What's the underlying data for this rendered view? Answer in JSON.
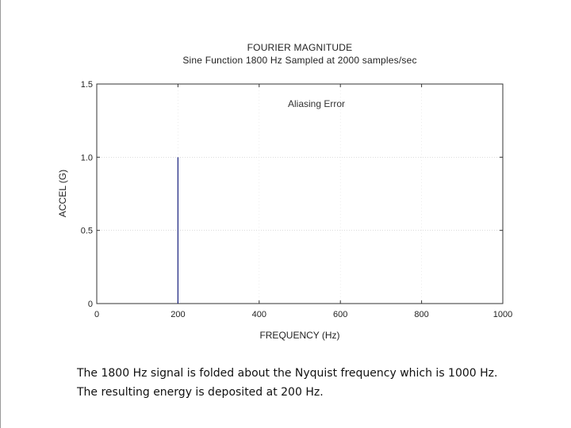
{
  "chart_data": {
    "type": "bar",
    "title": "FOURIER MAGNITUDE",
    "subtitle": "Sine Function 1800 Hz   Sampled at 2000 samples/sec",
    "xlabel": "FREQUENCY (Hz)",
    "ylabel": "ACCEL (G)",
    "xlim": [
      0,
      1000
    ],
    "ylim": [
      0,
      1.5
    ],
    "x_ticks": [
      0,
      200,
      400,
      600,
      800,
      1000
    ],
    "y_ticks": [
      0,
      0.5,
      1.0,
      1.5
    ],
    "y_tick_labels": [
      "0",
      "0.5",
      "1.0",
      "1.5"
    ],
    "grid": "dotted",
    "legend": "none",
    "annotation": "Aliasing Error",
    "series": [
      {
        "x": [
          200
        ],
        "values": [
          1.0
        ]
      }
    ],
    "line_color": "#1a237e"
  },
  "caption": {
    "line1": "The 1800 Hz signal is folded about the Nyquist frequency which is 1000 Hz.",
    "line2": "The resulting energy is deposited at 200 Hz."
  }
}
